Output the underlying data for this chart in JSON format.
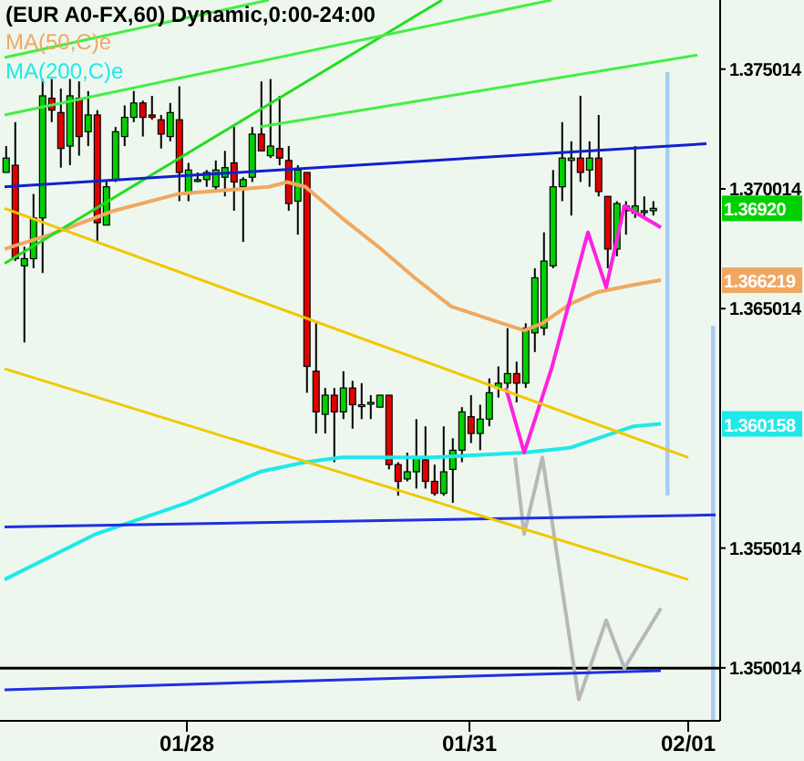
{
  "chart_data": {
    "type": "candlestick",
    "title": "(EUR A0-FX,60) Dynamic,0:00-24:00",
    "categories": [
      null,
      null,
      null,
      null,
      null,
      null,
      null,
      null,
      null,
      null,
      null,
      null,
      null,
      null,
      null,
      null,
      null,
      null,
      null,
      null,
      "01/28",
      null,
      null,
      null,
      null,
      null,
      null,
      null,
      null,
      null,
      null,
      null,
      null,
      null,
      null,
      null,
      null,
      null,
      null,
      null,
      null,
      null,
      null,
      null,
      null,
      null,
      null,
      null,
      null,
      null,
      null,
      "01/31",
      null,
      null,
      null,
      null,
      null,
      null,
      null,
      null,
      null,
      null,
      null,
      null,
      null,
      null,
      null,
      null,
      null,
      null,
      null,
      null,
      null,
      null,
      null,
      "02/01",
      null,
      null,
      null
    ],
    "colors": [
      "#00d000",
      "#e00000",
      "#00d000",
      "#00d000",
      "#00d000",
      "#e00000",
      "#e00000",
      "#00d000",
      "#e00000",
      "#00d000",
      "#e00000",
      "#00d000",
      "#00d000",
      "#00d000",
      "#00d000",
      "#e00000",
      "#e00000",
      "#e00000",
      "#00d000",
      "#e00000",
      "#00d000",
      "#00d000",
      "#00d000",
      "#00d000",
      "#00d000",
      "#e00000",
      "#00d000",
      "#00d000",
      "#e00000",
      "#00d000",
      "#e00000",
      "#e00000",
      "#00d000",
      "#e00000",
      "#e00000",
      "#00d000",
      "#e00000",
      "#00d000",
      "#e00000",
      "#00d000",
      "#00d000",
      "#00d000",
      "#e00000",
      "#e00000",
      "#00d000",
      "#00d000",
      "#e00000",
      "#e00000",
      "#00d000",
      "#00d000",
      "#00d000",
      "#e00000",
      "#00d000",
      "#00d000",
      "#00d000",
      "#00d000",
      "#e00000",
      "#00d000",
      "#00d000",
      "#00d000",
      "#00d000",
      "#00d000",
      "#00d000",
      "#e00000",
      "#00d000",
      "#e00000",
      "#e00000",
      "#00d000",
      "#e00000",
      "#00d000",
      "#00d000",
      "#00d000",
      null,
      null,
      null,
      null,
      null,
      null,
      null
    ],
    "ohlc": [
      [
        1.3707,
        1.3718,
        1.3707,
        1.3713
      ],
      [
        1.371,
        1.3728,
        1.367,
        1.3671
      ],
      [
        1.3668,
        1.3676,
        1.3636,
        1.3671
      ],
      [
        1.3671,
        1.3698,
        1.3667,
        1.3688
      ],
      [
        1.3688,
        1.3746,
        1.3665,
        1.3739
      ],
      [
        1.3738,
        1.3746,
        1.3728,
        1.3733
      ],
      [
        1.3732,
        1.3742,
        1.3709,
        1.3717
      ],
      [
        1.3718,
        1.3746,
        1.371,
        1.3739
      ],
      [
        1.3738,
        1.3745,
        1.3714,
        1.3722
      ],
      [
        1.3724,
        1.3741,
        1.3718,
        1.3731
      ],
      [
        1.3731,
        1.3733,
        1.3678,
        1.3686
      ],
      [
        1.3685,
        1.3704,
        1.3685,
        1.3701
      ],
      [
        1.3704,
        1.3726,
        1.3703,
        1.3724
      ],
      [
        1.3722,
        1.3735,
        1.3718,
        1.373
      ],
      [
        1.373,
        1.3741,
        1.3728,
        1.3736
      ],
      [
        1.3736,
        1.3737,
        1.3722,
        1.373
      ],
      [
        1.3731,
        1.3739,
        1.3729,
        1.373
      ],
      [
        1.3729,
        1.3731,
        1.3717,
        1.3723
      ],
      [
        1.3722,
        1.3736,
        1.372,
        1.3732
      ],
      [
        1.3729,
        1.3743,
        1.3695,
        1.3707
      ],
      [
        1.3698,
        1.3711,
        1.3695,
        1.3708
      ],
      [
        1.3704,
        1.3707,
        1.3703,
        1.3704
      ],
      [
        1.3704,
        1.3708,
        1.3701,
        1.3707
      ],
      [
        1.3701,
        1.3712,
        1.3699,
        1.3708
      ],
      [
        1.3705,
        1.3716,
        1.3697,
        1.3709
      ],
      [
        1.3711,
        1.3726,
        1.3691,
        1.3703
      ],
      [
        1.3701,
        1.3705,
        1.3678,
        1.3704
      ],
      [
        1.3705,
        1.3726,
        1.3703,
        1.3723
      ],
      [
        1.3723,
        1.3745,
        1.3716,
        1.3716
      ],
      [
        1.3714,
        1.3746,
        1.3713,
        1.3718
      ],
      [
        1.3717,
        1.3739,
        1.371,
        1.3713
      ],
      [
        1.3712,
        1.3718,
        1.3691,
        1.3694
      ],
      [
        1.3695,
        1.371,
        1.3681,
        1.3708
      ],
      [
        1.3707,
        1.3707,
        1.3615,
        1.3626
      ],
      [
        1.3624,
        1.3644,
        1.3598,
        1.3607
      ],
      [
        1.3606,
        1.3617,
        1.3598,
        1.3614
      ],
      [
        1.3614,
        1.3617,
        1.3586,
        1.3607
      ],
      [
        1.3607,
        1.3624,
        1.3604,
        1.3617
      ],
      [
        1.3617,
        1.362,
        1.36,
        1.361
      ],
      [
        1.361,
        1.3619,
        1.3604,
        1.361
      ],
      [
        1.3611,
        1.3614,
        1.3604,
        1.3611
      ],
      [
        1.3609,
        1.3614,
        1.3609,
        1.3614
      ],
      [
        1.3614,
        1.3614,
        1.3583,
        1.3585
      ],
      [
        1.3585,
        1.3586,
        1.3572,
        1.3578
      ],
      [
        1.3579,
        1.359,
        1.3578,
        1.3582
      ],
      [
        1.3582,
        1.3604,
        1.3575,
        1.3588
      ],
      [
        1.3587,
        1.3601,
        1.3575,
        1.3578
      ],
      [
        1.3578,
        1.3585,
        1.3572,
        1.3573
      ],
      [
        1.3573,
        1.3601,
        1.3572,
        1.3582
      ],
      [
        1.3583,
        1.3596,
        1.3569,
        1.3591
      ],
      [
        1.3591,
        1.3609,
        1.3586,
        1.3607
      ],
      [
        1.3605,
        1.3614,
        1.3594,
        1.3598
      ],
      [
        1.3598,
        1.361,
        1.3591,
        1.3604
      ],
      [
        1.3604,
        1.3621,
        1.3601,
        1.3615
      ],
      [
        1.3617,
        1.3626,
        1.3613,
        1.3619
      ],
      [
        1.3619,
        1.3642,
        1.3617,
        1.3623
      ],
      [
        1.3623,
        1.3628,
        1.3611,
        1.3619
      ],
      [
        1.3619,
        1.3644,
        1.3617,
        1.3642
      ],
      [
        1.364,
        1.3667,
        1.3632,
        1.3663
      ],
      [
        1.3642,
        1.3682,
        1.3639,
        1.367
      ],
      [
        1.3668,
        1.3708,
        1.3667,
        1.3701
      ],
      [
        1.3701,
        1.3728,
        1.3695,
        1.3713
      ],
      [
        1.3712,
        1.372,
        1.3689,
        1.3713
      ],
      [
        1.3713,
        1.3739,
        1.3703,
        1.3707
      ],
      [
        1.3708,
        1.372,
        1.3701,
        1.3713
      ],
      [
        1.3713,
        1.3731,
        1.3697,
        1.3699
      ],
      [
        1.3697,
        1.3697,
        1.3667,
        1.3675
      ],
      [
        1.3675,
        1.3695,
        1.3672,
        1.3694
      ],
      [
        1.3693,
        1.3695,
        1.3681,
        1.3691
      ],
      [
        1.369,
        1.3718,
        1.3688,
        1.3693
      ],
      [
        1.3691,
        1.3697,
        1.3688,
        1.3691
      ],
      [
        1.3691,
        1.3695,
        1.3689,
        1.3692
      ],
      null,
      null,
      null,
      null,
      null,
      null,
      null
    ],
    "series": [
      {
        "type": "line",
        "name": "MA(50,C)e",
        "color": "#f0a860",
        "values": [
          1.3675,
          null,
          null,
          null,
          null,
          1.3681,
          null,
          null,
          null,
          null,
          null,
          null,
          1.3691,
          null,
          null,
          null,
          null,
          null,
          null,
          1.3698,
          null,
          null,
          null,
          null,
          null,
          null,
          null,
          null,
          null,
          1.3701,
          null,
          1.3703,
          null,
          1.3701,
          null,
          null,
          null,
          1.3688,
          null,
          null,
          null,
          1.3676,
          null,
          null,
          null,
          1.3663,
          null,
          null,
          null,
          1.3651,
          null,
          null,
          null,
          1.3646,
          null,
          null,
          null,
          1.3641,
          null,
          1.3644,
          null,
          null,
          1.3652,
          null,
          null,
          1.3657,
          null,
          null,
          null,
          1.366,
          null,
          null,
          1.3662,
          null,
          null,
          null,
          null,
          null,
          null
        ]
      },
      {
        "type": "line",
        "name": "MA(200,C)e",
        "color": "#20e8e8",
        "values": [
          1.3537,
          null,
          null,
          null,
          null,
          null,
          null,
          null,
          null,
          null,
          1.3556,
          null,
          null,
          null,
          null,
          null,
          null,
          null,
          null,
          null,
          1.3569,
          null,
          null,
          null,
          null,
          null,
          null,
          null,
          1.3582,
          null,
          null,
          null,
          null,
          1.3586,
          null,
          null,
          null,
          1.3588,
          null,
          null,
          null,
          null,
          null,
          null,
          null,
          null,
          null,
          1.3588,
          null,
          null,
          null,
          null,
          null,
          null,
          null,
          null,
          null,
          1.359,
          null,
          null,
          null,
          null,
          1.3592,
          null,
          null,
          null,
          null,
          null,
          null,
          1.3601,
          null,
          null,
          1.3602,
          null,
          null,
          null,
          null,
          null,
          null
        ]
      },
      {
        "type": "line",
        "color": "#ff20e0",
        "values": [
          null,
          null,
          null,
          null,
          null,
          null,
          null,
          null,
          null,
          null,
          null,
          null,
          null,
          null,
          null,
          null,
          null,
          null,
          null,
          null,
          null,
          null,
          null,
          null,
          null,
          null,
          null,
          null,
          null,
          null,
          null,
          null,
          null,
          null,
          null,
          null,
          null,
          null,
          null,
          null,
          null,
          null,
          null,
          null,
          null,
          null,
          null,
          null,
          null,
          null,
          null,
          null,
          null,
          null,
          null,
          1.3617,
          null,
          1.359,
          null,
          null,
          1.3625,
          null,
          null,
          null,
          1.3682,
          null,
          1.3659,
          null,
          1.3693,
          null,
          null,
          null,
          1.3684,
          null,
          null,
          null,
          null,
          null,
          null
        ]
      },
      {
        "type": "line",
        "color": "#b8b8b8",
        "values": [
          null,
          null,
          null,
          null,
          null,
          null,
          null,
          null,
          null,
          null,
          null,
          null,
          null,
          null,
          null,
          null,
          null,
          null,
          null,
          null,
          null,
          null,
          null,
          null,
          null,
          null,
          null,
          null,
          null,
          null,
          null,
          null,
          null,
          null,
          null,
          null,
          null,
          null,
          null,
          null,
          null,
          null,
          null,
          null,
          null,
          null,
          null,
          null,
          null,
          null,
          null,
          null,
          null,
          null,
          null,
          null,
          1.3588,
          1.3556,
          null,
          1.3588,
          null,
          null,
          null,
          1.3487,
          null,
          null,
          1.352,
          null,
          1.35,
          null,
          null,
          null,
          1.3525,
          null,
          null,
          null,
          null,
          null,
          null
        ]
      },
      {
        "type": "line",
        "color": "#22dd22",
        "values": [
          1.3669,
          null,
          null,
          null,
          null,
          null,
          null,
          null,
          null,
          null,
          null,
          null,
          null,
          null,
          null,
          null,
          null,
          null,
          null,
          null,
          null,
          null,
          null,
          null,
          null,
          null,
          null,
          null,
          null,
          null,
          null,
          null,
          null,
          null,
          null,
          null,
          null,
          null,
          null,
          null,
          null,
          null,
          null,
          null,
          null,
          null,
          null,
          null,
          1.3779,
          null,
          null,
          null,
          null,
          null,
          null,
          null,
          null,
          null,
          null,
          null,
          null,
          null,
          null,
          null,
          null,
          null,
          null,
          null,
          null,
          null,
          null,
          null,
          null,
          null,
          null,
          null,
          null,
          null,
          null
        ]
      },
      {
        "type": "line",
        "color": "#44ee44",
        "values": [
          1.3755,
          null,
          null,
          null,
          null,
          null,
          null,
          null,
          null,
          null,
          null,
          null,
          null,
          null,
          null,
          null,
          null,
          null,
          null,
          null,
          null,
          null,
          null,
          null,
          null,
          null,
          null,
          null,
          null,
          1.3779,
          null,
          null,
          null,
          null,
          null,
          null,
          null,
          null,
          null,
          null,
          null,
          null,
          null,
          null,
          null,
          null,
          null,
          null,
          null,
          null,
          null,
          null,
          null,
          null,
          null,
          null,
          null,
          null,
          null,
          null,
          null,
          null,
          null,
          null,
          null,
          null,
          null,
          null,
          null,
          null,
          null,
          null,
          null,
          null,
          null,
          null,
          null,
          null,
          null
        ]
      },
      {
        "type": "line",
        "color": "#44ee44",
        "values": [
          1.3731,
          null,
          null,
          null,
          null,
          null,
          null,
          null,
          null,
          null,
          null,
          null,
          null,
          null,
          null,
          null,
          null,
          null,
          null,
          null,
          null,
          null,
          null,
          null,
          null,
          null,
          null,
          null,
          null,
          null,
          null,
          null,
          null,
          null,
          null,
          null,
          null,
          null,
          null,
          null,
          null,
          null,
          null,
          null,
          null,
          null,
          null,
          null,
          null,
          null,
          null,
          null,
          null,
          null,
          null,
          null,
          null,
          null,
          null,
          null,
          1.3779,
          null,
          null,
          null,
          null,
          null,
          null,
          null,
          null,
          null,
          null,
          null,
          null,
          null,
          null,
          null,
          null,
          null,
          null
        ]
      },
      {
        "type": "line",
        "color": "#44ee44",
        "values": [
          null,
          null,
          null,
          null,
          null,
          null,
          null,
          null,
          null,
          null,
          null,
          null,
          null,
          null,
          null,
          null,
          null,
          null,
          null,
          null,
          null,
          null,
          null,
          null,
          null,
          null,
          null,
          null,
          1.3726,
          null,
          null,
          null,
          null,
          null,
          null,
          null,
          null,
          null,
          null,
          null,
          null,
          null,
          null,
          null,
          null,
          null,
          null,
          null,
          null,
          null,
          null,
          null,
          null,
          null,
          null,
          null,
          null,
          null,
          null,
          null,
          null,
          null,
          null,
          null,
          null,
          null,
          null,
          null,
          null,
          null,
          null,
          null,
          null,
          null,
          null,
          null,
          1.3756,
          null,
          null
        ]
      },
      {
        "type": "line",
        "color": "#1020d0",
        "values": [
          1.3701,
          null,
          null,
          null,
          null,
          null,
          null,
          null,
          null,
          null,
          null,
          null,
          null,
          null,
          null,
          null,
          null,
          null,
          null,
          null,
          null,
          null,
          null,
          null,
          null,
          null,
          null,
          null,
          null,
          null,
          null,
          null,
          null,
          null,
          null,
          null,
          null,
          null,
          null,
          null,
          null,
          null,
          null,
          null,
          null,
          null,
          null,
          null,
          null,
          null,
          null,
          null,
          null,
          null,
          null,
          null,
          null,
          null,
          null,
          null,
          null,
          null,
          null,
          null,
          null,
          null,
          null,
          null,
          null,
          null,
          null,
          null,
          null,
          null,
          null,
          null,
          null,
          1.3719,
          null
        ]
      },
      {
        "type": "line",
        "color": "#2030e0",
        "values": [
          1.3559,
          null,
          null,
          null,
          null,
          null,
          null,
          null,
          null,
          null,
          null,
          null,
          null,
          null,
          null,
          null,
          null,
          null,
          null,
          null,
          null,
          null,
          null,
          null,
          null,
          null,
          null,
          null,
          null,
          null,
          null,
          null,
          null,
          null,
          null,
          null,
          null,
          null,
          null,
          null,
          null,
          null,
          null,
          null,
          null,
          null,
          null,
          null,
          null,
          null,
          null,
          null,
          null,
          null,
          null,
          null,
          null,
          null,
          null,
          null,
          null,
          null,
          null,
          null,
          null,
          null,
          null,
          null,
          null,
          null,
          null,
          null,
          null,
          null,
          null,
          null,
          null,
          null,
          1.3564
        ]
      },
      {
        "type": "line",
        "color": "#2030e0",
        "values": [
          1.3491,
          null,
          null,
          null,
          null,
          null,
          null,
          null,
          null,
          null,
          null,
          null,
          null,
          null,
          null,
          null,
          null,
          null,
          null,
          null,
          null,
          null,
          null,
          null,
          null,
          null,
          null,
          null,
          null,
          null,
          null,
          null,
          null,
          null,
          null,
          null,
          null,
          null,
          null,
          null,
          null,
          null,
          null,
          null,
          null,
          null,
          null,
          null,
          null,
          null,
          null,
          null,
          null,
          null,
          null,
          null,
          null,
          null,
          null,
          null,
          null,
          null,
          null,
          null,
          null,
          null,
          null,
          null,
          null,
          null,
          null,
          null,
          1.3499,
          null,
          null,
          null,
          null,
          null,
          null
        ]
      },
      {
        "type": "line",
        "color": "#f0c800",
        "values": [
          1.3692,
          null,
          null,
          null,
          null,
          null,
          null,
          null,
          null,
          null,
          null,
          null,
          null,
          null,
          null,
          null,
          null,
          null,
          null,
          null,
          null,
          null,
          null,
          null,
          null,
          null,
          null,
          null,
          null,
          null,
          null,
          null,
          null,
          null,
          null,
          null,
          null,
          null,
          null,
          null,
          null,
          null,
          null,
          null,
          null,
          null,
          null,
          null,
          null,
          null,
          null,
          null,
          null,
          null,
          null,
          null,
          null,
          null,
          null,
          null,
          null,
          null,
          null,
          null,
          null,
          null,
          null,
          null,
          null,
          null,
          null,
          null,
          null,
          null,
          null,
          1.3588,
          null,
          null,
          null
        ]
      },
      {
        "type": "line",
        "color": "#f0c800",
        "values": [
          1.3625,
          null,
          null,
          null,
          null,
          null,
          null,
          null,
          null,
          null,
          null,
          null,
          null,
          null,
          null,
          null,
          null,
          null,
          null,
          null,
          null,
          null,
          null,
          null,
          null,
          null,
          null,
          null,
          null,
          null,
          null,
          null,
          null,
          null,
          null,
          null,
          null,
          null,
          null,
          null,
          null,
          null,
          null,
          null,
          null,
          null,
          null,
          null,
          null,
          null,
          null,
          null,
          null,
          null,
          null,
          null,
          null,
          null,
          null,
          null,
          null,
          null,
          null,
          null,
          null,
          null,
          null,
          null,
          null,
          null,
          null,
          null,
          null,
          null,
          null,
          1.3537,
          null,
          null,
          null
        ]
      },
      {
        "type": "bar",
        "color": "#a8cdf0",
        "base": [
          null,
          null,
          null,
          null,
          null,
          null,
          null,
          null,
          null,
          null,
          null,
          null,
          null,
          null,
          null,
          null,
          null,
          null,
          null,
          null,
          null,
          null,
          null,
          null,
          null,
          null,
          null,
          null,
          null,
          null,
          null,
          null,
          null,
          null,
          null,
          null,
          null,
          null,
          null,
          null,
          null,
          null,
          null,
          null,
          null,
          null,
          null,
          null,
          null,
          null,
          null,
          null,
          null,
          null,
          null,
          null,
          null,
          null,
          null,
          null,
          null,
          null,
          null,
          null,
          null,
          null,
          null,
          null,
          null,
          null,
          null,
          null,
          null,
          1.3572,
          null,
          null,
          null,
          null,
          1.3478
        ],
        "values": [
          null,
          null,
          null,
          null,
          null,
          null,
          null,
          null,
          null,
          null,
          null,
          null,
          null,
          null,
          null,
          null,
          null,
          null,
          null,
          null,
          null,
          null,
          null,
          null,
          null,
          null,
          null,
          null,
          null,
          null,
          null,
          null,
          null,
          null,
          null,
          null,
          null,
          null,
          null,
          null,
          null,
          null,
          null,
          null,
          null,
          null,
          null,
          null,
          null,
          null,
          null,
          null,
          null,
          null,
          null,
          null,
          null,
          null,
          null,
          null,
          null,
          null,
          null,
          null,
          null,
          null,
          null,
          null,
          null,
          null,
          null,
          null,
          null,
          0.0177,
          null,
          null,
          null,
          null,
          0.0165
        ]
      }
    ],
    "ylim": [
      1.3478,
      1.3779
    ],
    "yticks": [
      1.350014,
      1.355014,
      1.365014,
      1.370014,
      1.375014
    ],
    "ref_lines": [
      {
        "axis": "y",
        "value": 1.35,
        "color": "#000000"
      }
    ],
    "annotations": [
      "1.36920",
      "1.366219",
      "1.360158"
    ],
    "legend": "top left"
  }
}
